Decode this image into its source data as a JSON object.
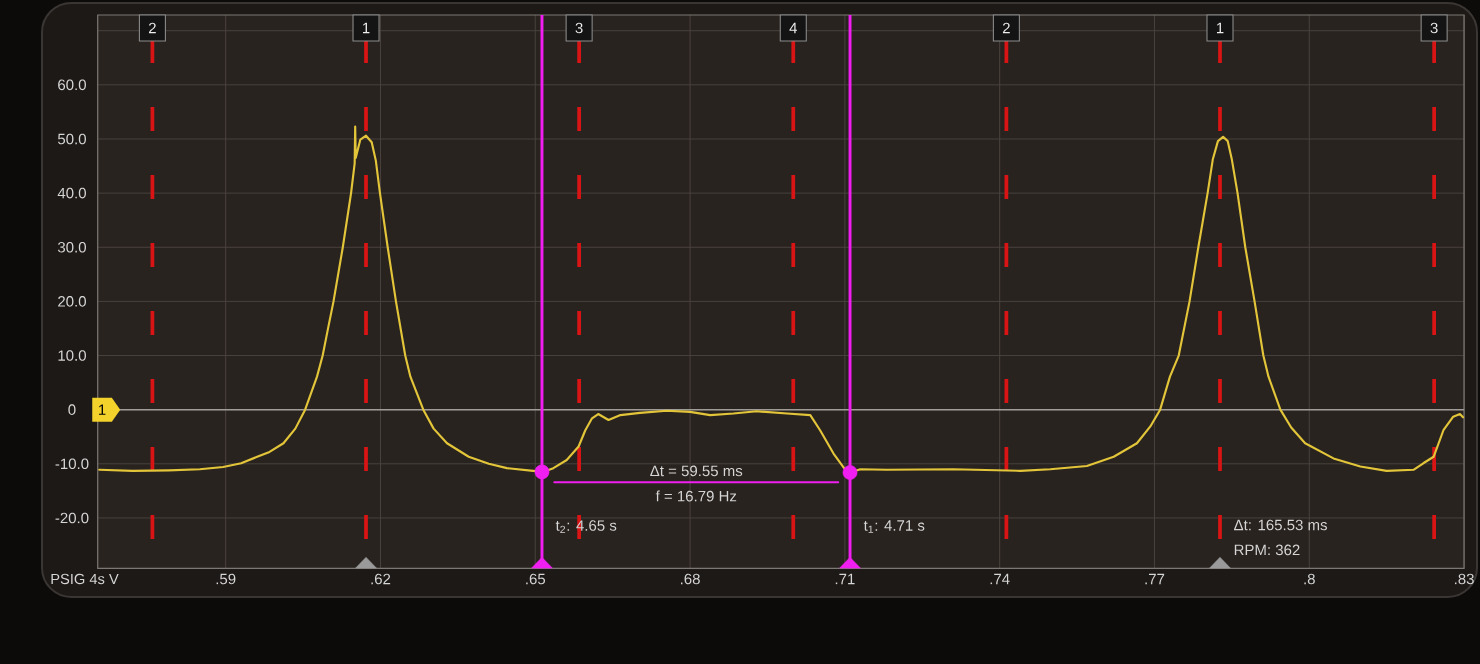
{
  "chart_data": {
    "type": "line",
    "xlim": [
      0.5652,
      0.83
    ],
    "ylim": [
      -29.3,
      72.9
    ],
    "xticks": [
      {
        "value": 0.59,
        "label": ".59"
      },
      {
        "value": 0.62,
        "label": ".62"
      },
      {
        "value": 0.65,
        "label": ".65"
      },
      {
        "value": 0.68,
        "label": ".68"
      },
      {
        "value": 0.71,
        "label": ".71"
      },
      {
        "value": 0.74,
        "label": ".74"
      },
      {
        "value": 0.77,
        "label": ".77"
      },
      {
        "value": 0.8,
        "label": ".8"
      },
      {
        "value": 0.83,
        "label": ".83"
      }
    ],
    "yticks": [
      {
        "value": -20,
        "label": "-20.0"
      },
      {
        "value": -10,
        "label": "-10.0"
      },
      0,
      {
        "value": 10,
        "label": "10.0"
      },
      {
        "value": 20,
        "label": "20.0"
      },
      {
        "value": 30,
        "label": "30.0"
      },
      {
        "value": 40,
        "label": "40.0"
      },
      {
        "value": 50,
        "label": "50.0"
      },
      {
        "value": 60,
        "label": "60.0"
      },
      {
        "value": 70,
        "label": null
      }
    ],
    "grid": true,
    "series": [
      {
        "type": "line",
        "color": "#e3c53a",
        "x": [
          0.5655,
          0.572,
          0.579,
          0.585,
          0.5895,
          0.593,
          0.5961,
          0.5985,
          0.6012,
          0.6035,
          0.6054,
          0.6077,
          0.6088,
          0.6099,
          0.6109,
          0.6127,
          0.6143,
          0.615,
          0.6151,
          0.6152,
          0.6161,
          0.6172,
          0.6183,
          0.6191,
          0.6199,
          0.6214,
          0.623,
          0.6248,
          0.6258,
          0.6283,
          0.6303,
          0.6329,
          0.6371,
          0.641,
          0.6445,
          0.6496,
          0.6515,
          0.6535,
          0.6561,
          0.6584,
          0.6597,
          0.661,
          0.6622,
          0.6642,
          0.6665,
          0.6703,
          0.6755,
          0.68,
          0.6839,
          0.6884,
          0.6929,
          0.6988,
          0.7033,
          0.7052,
          0.7078,
          0.7101,
          0.711,
          0.713,
          0.7181,
          0.731,
          0.744,
          0.7498,
          0.7569,
          0.7621,
          0.7666,
          0.7692,
          0.7711,
          0.773,
          0.7747,
          0.7768,
          0.7785,
          0.7803,
          0.7813,
          0.7823,
          0.7833,
          0.7842,
          0.785,
          0.7861,
          0.7876,
          0.7894,
          0.7911,
          0.7921,
          0.7944,
          0.7965,
          0.7992,
          0.8047,
          0.8099,
          0.815,
          0.8202,
          0.8221,
          0.8241,
          0.826,
          0.8279,
          0.8292,
          0.8298
        ],
        "values": [
          -11.1,
          -11.3,
          -11.2,
          -11.0,
          -10.6,
          -9.9,
          -8.7,
          -7.8,
          -6.2,
          -3.5,
          0.0,
          6.1,
          10.0,
          15.3,
          20.0,
          30.0,
          40.0,
          45.5,
          52.3,
          46.5,
          49.9,
          50.6,
          49.4,
          46.0,
          40.0,
          30.0,
          20.0,
          10.0,
          6.1,
          0.0,
          -3.5,
          -6.2,
          -8.7,
          -10.0,
          -10.8,
          -11.3,
          -11.5,
          -10.8,
          -9.3,
          -6.8,
          -3.8,
          -1.6,
          -0.8,
          -1.9,
          -1.0,
          -0.6,
          -0.2,
          -0.4,
          -1.0,
          -0.7,
          -0.3,
          -0.7,
          -1.0,
          -3.8,
          -8.1,
          -11.1,
          -11.6,
          -11.0,
          -11.1,
          -11.0,
          -11.3,
          -11.0,
          -10.4,
          -8.7,
          -6.2,
          -3.1,
          0.0,
          6.1,
          10.0,
          20.0,
          30.0,
          40.0,
          46.2,
          49.6,
          50.4,
          49.6,
          46.2,
          40.0,
          30.0,
          20.0,
          10.0,
          6.1,
          0.0,
          -3.3,
          -6.2,
          -9.0,
          -10.5,
          -11.3,
          -11.1,
          -9.9,
          -8.7,
          -3.8,
          -1.3,
          -0.8,
          -1.4
        ]
      },
      {
        "type": "line",
        "color": "#f01ef0",
        "x": [
          0.6537,
          0.7087
        ],
        "values": [
          -13.4,
          -13.4
        ]
      },
      {
        "type": "scatter",
        "marker": "circle",
        "color": "#f01ef0",
        "x": [
          0.6513,
          0.711
        ],
        "values": [
          -11.5,
          -11.6
        ]
      },
      {
        "type": "scatter",
        "marker": "triangle",
        "color": "#f01ef0",
        "x": [
          0.6513,
          0.711
        ],
        "values": [
          -28.6,
          -28.6
        ]
      },
      {
        "type": "scatter",
        "marker": "triangle",
        "color": "#9a9a9a",
        "x": [
          0.6172,
          0.7827
        ],
        "values": [
          -28.6,
          -28.6
        ]
      }
    ],
    "ref_lines": [
      {
        "axis": "y",
        "value": 0,
        "color": "#a09c98"
      },
      {
        "axis": "x",
        "value": 0.5758,
        "color": "#d81414",
        "line_style": "dashed"
      },
      {
        "axis": "x",
        "value": 0.6172,
        "color": "#d81414",
        "line_style": "dashed"
      },
      {
        "axis": "x",
        "value": 0.6585,
        "color": "#d81414",
        "line_style": "dashed"
      },
      {
        "axis": "x",
        "value": 0.7,
        "color": "#d81414",
        "line_style": "dashed"
      },
      {
        "axis": "x",
        "value": 0.7413,
        "color": "#d81414",
        "line_style": "dashed"
      },
      {
        "axis": "x",
        "value": 0.7827,
        "color": "#d81414",
        "line_style": "dashed"
      },
      {
        "axis": "x",
        "value": 0.8242,
        "color": "#d81414",
        "line_style": "dashed"
      },
      {
        "axis": "x",
        "value": 0.6513,
        "color": "#f01ef0",
        "line_style": "solid"
      },
      {
        "axis": "x",
        "value": 0.711,
        "color": "#f01ef0",
        "line_style": "solid"
      }
    ],
    "annotations": [
      {
        "text": "2",
        "x": 0.5758,
        "y": 70.5
      },
      {
        "text": "1",
        "x": 0.6172,
        "y": 70.5
      },
      {
        "text": "3",
        "x": 0.6585,
        "y": 70.5
      },
      {
        "text": "4",
        "x": 0.7,
        "y": 70.5
      },
      {
        "text": "2",
        "x": 0.7413,
        "y": 70.5
      },
      {
        "text": "1",
        "x": 0.7827,
        "y": 70.5
      },
      {
        "text": "3",
        "x": 0.8242,
        "y": 70.5
      },
      {
        "text": "1",
        "x": 0.5652,
        "y": 0
      },
      {
        "text": "t$_{2}$: 4.65 s",
        "x": 0.6513,
        "y": -21.6
      },
      {
        "text": "t$_{1}$: 4.71 s",
        "x": 0.711,
        "y": -21.6
      },
      {
        "text": "Δt = 59.55 ms",
        "x": 0.6812,
        "y": -13.4
      },
      {
        "text": "f = 16.79 Hz",
        "x": 0.6812,
        "y": -13.4
      },
      {
        "text": "Δt: 165.53 ms",
        "x": 0.7827,
        "y": -21.3
      },
      {
        "text": "RPM: 362",
        "x": 0.7827,
        "y": -25.9
      },
      "PSIG 4s V"
    ]
  }
}
